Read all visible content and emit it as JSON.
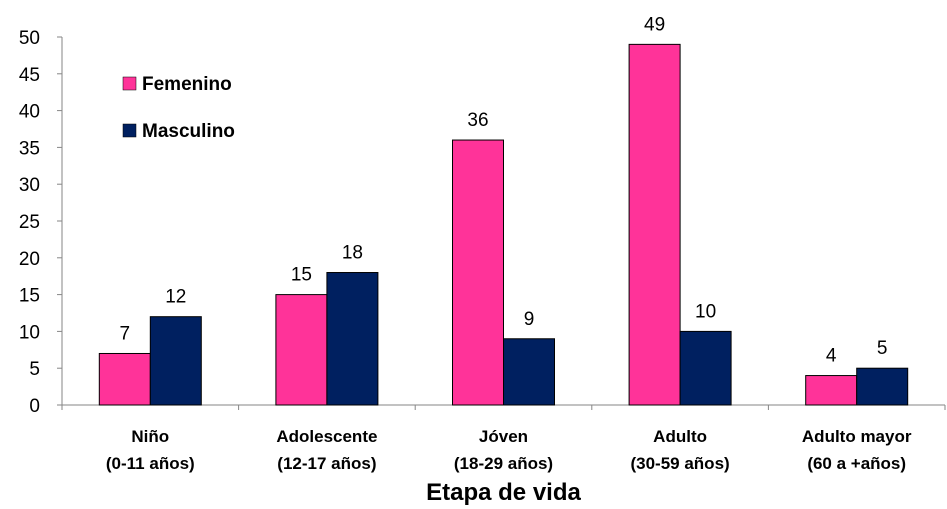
{
  "chart_data": {
    "type": "bar",
    "categories": [
      [
        "Niño",
        "(0-11 años)"
      ],
      [
        "Adolescente",
        "(12-17 años)"
      ],
      [
        "Jóven",
        "(18-29 años)"
      ],
      [
        "Adulto",
        "(30-59 años)"
      ],
      [
        "Adulto mayor",
        "(60 a +años)"
      ]
    ],
    "series": [
      {
        "name": "Femenino",
        "values": [
          7,
          15,
          36,
          49,
          4
        ],
        "color": "#FF3399"
      },
      {
        "name": "Masculino",
        "values": [
          12,
          18,
          9,
          10,
          5
        ],
        "color": "#002060"
      }
    ],
    "xlabel": "Etapa de vida",
    "ylabel": "",
    "ylim": [
      0,
      50
    ],
    "yticks": [
      0,
      5,
      10,
      15,
      20,
      25,
      30,
      35,
      40,
      45,
      50
    ],
    "grid": false,
    "legend_position": "top-left",
    "data_labels": true
  }
}
